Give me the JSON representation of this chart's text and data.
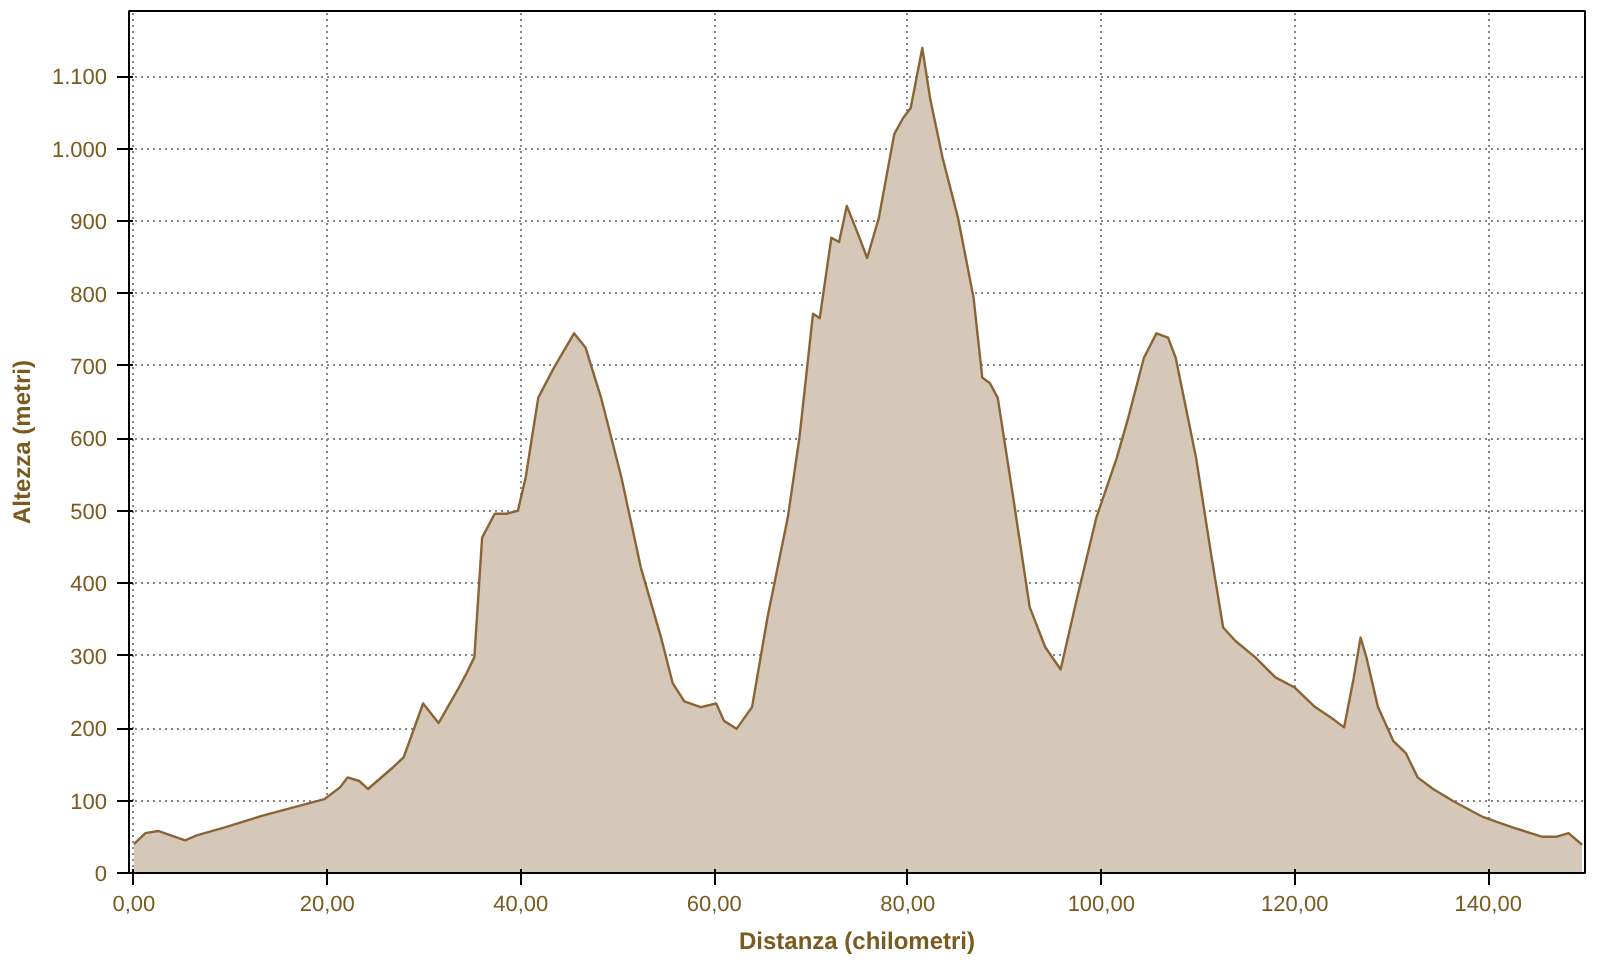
{
  "chart_data": {
    "type": "area",
    "xlabel": "Distanza (chilometri)",
    "ylabel": "Altezza (metri)",
    "xlim": [
      -0.5,
      150
    ],
    "ylim": [
      0,
      1190
    ],
    "xticks": [
      {
        "value": 0,
        "label": "0,00"
      },
      {
        "value": 20,
        "label": "20,00"
      },
      {
        "value": 40,
        "label": "40,00"
      },
      {
        "value": 60,
        "label": "60,00"
      },
      {
        "value": 80,
        "label": "80,00"
      },
      {
        "value": 100,
        "label": "100,00"
      },
      {
        "value": 120,
        "label": "120,00"
      },
      {
        "value": 140,
        "label": "140,00"
      }
    ],
    "yticks": [
      0,
      100,
      200,
      300,
      400,
      500,
      600,
      700,
      800,
      900,
      {
        "value": 1000,
        "label": "1.000"
      },
      {
        "value": 1100,
        "label": "1.100"
      }
    ],
    "grid": true,
    "x": [
      0,
      1.2,
      2.5,
      5.3,
      6.5,
      9.4,
      13.5,
      19.7,
      21.3,
      22.1,
      23.3,
      24.2,
      26.8,
      27.9,
      29.9,
      31.5,
      33.6,
      34.4,
      35.2,
      36,
      37.3,
      38.5,
      39.7,
      40.5,
      41.8,
      43.4,
      45.5,
      46.7,
      48.3,
      50.4,
      52.4,
      54.5,
      55.7,
      56.9,
      58.6,
      60.2,
      61,
      62.3,
      63.9,
      65.5,
      67.6,
      68.8,
      70.2,
      70.9,
      72.1,
      72.9,
      73.7,
      75,
      75.8,
      77,
      78.6,
      79.5,
      80.3,
      81.5,
      82.3,
      83.6,
      85.2,
      86.8,
      87.7,
      88.5,
      89.3,
      90.9,
      92.6,
      94.2,
      95.8,
      97.5,
      99.5,
      101.6,
      102.8,
      104.4,
      105.7,
      106.9,
      107.7,
      109.8,
      111.4,
      112.6,
      113.9,
      115.9,
      118,
      120,
      122.1,
      123.7,
      125.1,
      126.1,
      126.8,
      127.4,
      128.6,
      130.2,
      131.5,
      132.7,
      134.3,
      136.4,
      139.5,
      142.5,
      145.6,
      147,
      148.3,
      149.7
    ],
    "series": [
      {
        "color": "#8b6436",
        "values": [
          40,
          55,
          58,
          45,
          52,
          63,
          80,
          102,
          118,
          132,
          127,
          116,
          146,
          160,
          234,
          207,
          256,
          276,
          298,
          463,
          496,
          496,
          500,
          546,
          656,
          697,
          745,
          725,
          656,
          546,
          422,
          325,
          262,
          237,
          229,
          234,
          210,
          199,
          229,
          353,
          491,
          601,
          772,
          766,
          877,
          871,
          921,
          877,
          849,
          904,
          1020,
          1042,
          1056,
          1139,
          1070,
          987,
          904,
          794,
          684,
          676,
          656,
          518,
          367,
          312,
          281,
          380,
          491,
          573,
          629,
          711,
          745,
          739,
          711,
          573,
          436,
          339,
          320,
          298,
          270,
          256,
          229,
          215,
          201,
          270,
          325,
          298,
          229,
          182,
          165,
          132,
          116,
          99,
          77,
          63,
          50,
          50,
          55,
          39
        ]
      }
    ]
  }
}
